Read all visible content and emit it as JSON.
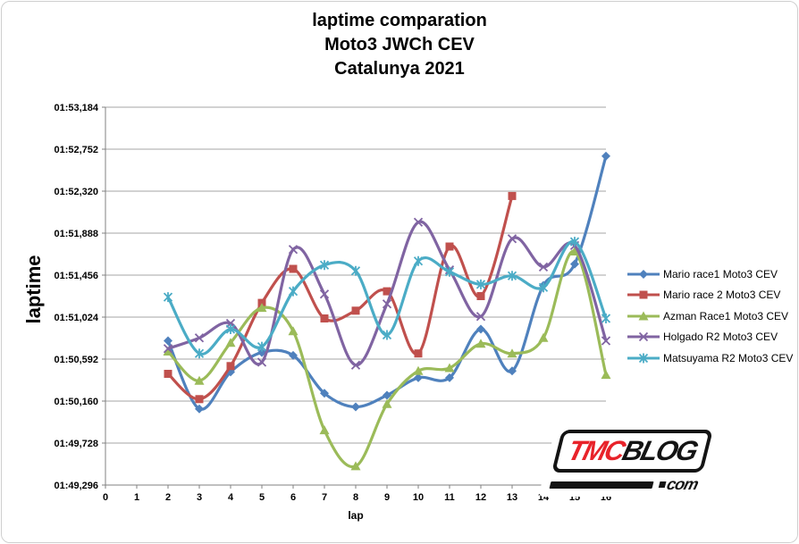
{
  "title": {
    "line1": "laptime comparation",
    "line2": "Moto3 JWCh CEV",
    "line3": "Catalunya 2021"
  },
  "chart_data": {
    "type": "line",
    "smooth": true,
    "title": "laptime comparation Moto3 JWCh CEV Catalunya 2021",
    "xlabel": "lap",
    "ylabel": "laptime",
    "xlim": [
      0,
      16
    ],
    "ylim": [
      109.296,
      113.184
    ],
    "grid": true,
    "legend_position": "right",
    "x_ticks": [
      "0",
      "1",
      "2",
      "3",
      "4",
      "5",
      "6",
      "7",
      "8",
      "9",
      "10",
      "11",
      "12",
      "13",
      "14",
      "15",
      "16"
    ],
    "y_ticks": [
      {
        "value": 109.296,
        "label": "01:49,296"
      },
      {
        "value": 109.728,
        "label": "01:49,728"
      },
      {
        "value": 110.16,
        "label": "01:50,160"
      },
      {
        "value": 110.592,
        "label": "01:50,592"
      },
      {
        "value": 111.024,
        "label": "01:51,024"
      },
      {
        "value": 111.456,
        "label": "01:51,456"
      },
      {
        "value": 111.888,
        "label": "01:51,888"
      },
      {
        "value": 112.32,
        "label": "01:52,320"
      },
      {
        "value": 112.752,
        "label": "01:52,752"
      },
      {
        "value": 113.184,
        "label": "01:53,184"
      }
    ],
    "y_unit": "seconds (label format mm:ss,ms)",
    "series": [
      {
        "name": "Mario race1 Moto3 CEV",
        "slug": "mario-race1",
        "color": "#4F81BD",
        "marker": "diamond",
        "x": [
          2,
          3,
          4,
          5,
          6,
          7,
          8,
          9,
          10,
          11,
          12,
          13,
          14,
          15,
          16
        ],
        "y": [
          110.78,
          110.08,
          110.46,
          110.66,
          110.63,
          110.24,
          110.1,
          110.22,
          110.4,
          110.4,
          110.9,
          110.47,
          111.35,
          111.57,
          112.68
        ]
      },
      {
        "name": "Mario race 2 Moto3 CEV",
        "slug": "mario-race2",
        "color": "#C0504D",
        "marker": "square",
        "x": [
          2,
          3,
          4,
          5,
          6,
          7,
          8,
          9,
          10,
          11,
          12,
          13
        ],
        "y": [
          110.44,
          110.18,
          110.52,
          111.17,
          111.52,
          111.01,
          111.09,
          111.29,
          110.65,
          111.75,
          111.24,
          112.27
        ]
      },
      {
        "name": "Azman Race1 Moto3 CEV",
        "slug": "azman-race1",
        "color": "#9BBB59",
        "marker": "triangle",
        "x": [
          2,
          3,
          4,
          5,
          6,
          7,
          8,
          9,
          10,
          11,
          12,
          13,
          14,
          15,
          16
        ],
        "y": [
          110.67,
          110.37,
          110.76,
          111.12,
          110.88,
          109.86,
          109.49,
          110.13,
          110.47,
          110.5,
          110.75,
          110.65,
          110.81,
          111.7,
          110.43
        ]
      },
      {
        "name": "Holgado R2 Moto3 CEV",
        "slug": "holgado-r2",
        "color": "#8064A2",
        "marker": "x",
        "x": [
          2,
          3,
          4,
          5,
          6,
          7,
          8,
          9,
          10,
          11,
          12,
          13,
          14,
          15,
          16
        ],
        "y": [
          110.7,
          110.81,
          110.96,
          110.56,
          111.72,
          111.26,
          110.53,
          111.16,
          112.0,
          111.51,
          111.03,
          111.83,
          111.54,
          111.76,
          110.78
        ]
      },
      {
        "name": "Matsuyama R2 Moto3 CEV",
        "slug": "matsuyama-r2",
        "color": "#4BACC6",
        "marker": "asterisk",
        "x": [
          2,
          3,
          4,
          5,
          6,
          7,
          8,
          9,
          10,
          11,
          12,
          13,
          14,
          15,
          16
        ],
        "y": [
          111.23,
          110.65,
          110.9,
          110.72,
          111.29,
          111.56,
          111.5,
          110.84,
          111.6,
          111.49,
          111.36,
          111.45,
          111.33,
          111.8,
          111.01
        ]
      }
    ]
  },
  "watermark": {
    "tmc": "TMC",
    "blog": "BLOG",
    "com": "com"
  },
  "colors": {
    "grid": "#A6A6A6",
    "axis": "#808080",
    "text": "#000000"
  }
}
